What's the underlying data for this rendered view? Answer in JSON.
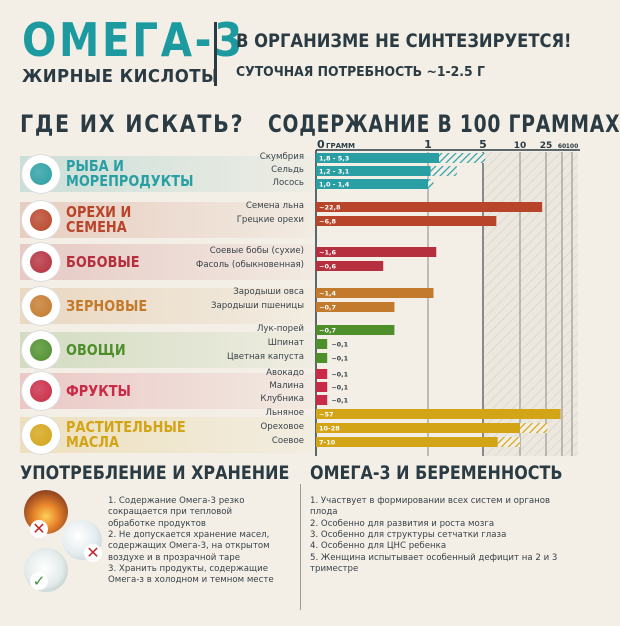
{
  "header": {
    "title": "ОМЕГА-3",
    "subtitle": "ЖИРНЫЕ КИСЛОТЫ",
    "line1": "В ОРГАНИЗМЕ НЕ СИНТЕЗИРУЕТСЯ!",
    "line2": "СУТОЧНАЯ ПОТРЕБНОСТЬ ~1-2.5 Г"
  },
  "sections": {
    "where": "ГДЕ ИХ ИСКАТЬ?",
    "content": "СОДЕРЖАНИЕ В 100 ГРАММАХ"
  },
  "colors": {
    "fish": "#2a9fa3",
    "nuts": "#b8452a",
    "legumes": "#b52f3e",
    "grains": "#c47a2c",
    "veg": "#4e8f2c",
    "fruits": "#c92a45",
    "oils": "#d4a417"
  },
  "categories": [
    {
      "name": "РЫБА И\nМОРЕПРОДУКТЫ",
      "color": "#2a9fa3",
      "icon": "fish-icon"
    },
    {
      "name": "ОРЕХИ И\nСЕМЕНА",
      "color": "#b8452a",
      "icon": "nuts-icon"
    },
    {
      "name": "БОБОВЫЕ",
      "color": "#b52f3e",
      "icon": "beans-icon"
    },
    {
      "name": "ЗЕРНОВЫЕ",
      "color": "#c47a2c",
      "icon": "wheat-icon"
    },
    {
      "name": "ОВОЩИ",
      "color": "#4e8f2c",
      "icon": "leek-icon"
    },
    {
      "name": "ФРУКТЫ",
      "color": "#c92a45",
      "icon": "raspberry-icon"
    },
    {
      "name": "РАСТИТЕЛЬНЫЕ\nМАСЛА",
      "color": "#d4a417",
      "icon": "oil-bottle-icon"
    }
  ],
  "chart_data": {
    "type": "bar",
    "title": "СОДЕРЖАНИЕ В 100 ГРАММАХ",
    "axis_unit": "ГРАММ",
    "ticks": [
      {
        "value": 0,
        "label": "0"
      },
      {
        "value": 1,
        "label": "1"
      },
      {
        "value": 5,
        "label": "5"
      },
      {
        "value": 10,
        "label": "10"
      },
      {
        "value": 25,
        "label": "25"
      },
      {
        "value": 60,
        "label": "60"
      },
      {
        "value": 100,
        "label": "100"
      }
    ],
    "items": [
      {
        "cat": 0,
        "name": "Скумбрия",
        "min": 1.8,
        "max": 5.3,
        "label": "1,8 - 5,3"
      },
      {
        "cat": 0,
        "name": "Сельдь",
        "min": 1.2,
        "max": 3.1,
        "label": "1,2 - 3,1"
      },
      {
        "cat": 0,
        "name": "Лосось",
        "min": 1.0,
        "max": 1.4,
        "label": "1,0 - 1,4"
      },
      {
        "cat": 1,
        "name": "Семена льна",
        "min": 22.8,
        "max": 22.8,
        "label": "~22,8"
      },
      {
        "cat": 1,
        "name": "Грецкие орехи",
        "min": 6.8,
        "max": 6.8,
        "label": "~6,8"
      },
      {
        "cat": 2,
        "name": "Соевые бобы (сухие)",
        "min": 1.6,
        "max": 1.6,
        "label": "~1,6"
      },
      {
        "cat": 2,
        "name": "Фасоль (обыкновенная)",
        "min": 0.6,
        "max": 0.6,
        "label": "~0,6"
      },
      {
        "cat": 3,
        "name": "Зародыши овса",
        "min": 1.4,
        "max": 1.4,
        "label": "~1,4"
      },
      {
        "cat": 3,
        "name": "Зародыши пшеницы",
        "min": 0.7,
        "max": 0.7,
        "label": "~0,7"
      },
      {
        "cat": 4,
        "name": "Лук-порей",
        "min": 0.7,
        "max": 0.7,
        "label": "~0,7"
      },
      {
        "cat": 4,
        "name": "Шпинат",
        "min": 0.1,
        "max": 0.1,
        "label": "~0,1"
      },
      {
        "cat": 4,
        "name": "Цветная капуста",
        "min": 0.1,
        "max": 0.1,
        "label": "~0,1"
      },
      {
        "cat": 5,
        "name": "Авокадо",
        "min": 0.1,
        "max": 0.1,
        "label": "~0,1"
      },
      {
        "cat": 5,
        "name": "Малина",
        "min": 0.1,
        "max": 0.1,
        "label": "~0,1"
      },
      {
        "cat": 5,
        "name": "Клубника",
        "min": 0.1,
        "max": 0.1,
        "label": "~0,1"
      },
      {
        "cat": 6,
        "name": "Льняное",
        "min": 57,
        "max": 57,
        "label": "~57"
      },
      {
        "cat": 6,
        "name": "Ореховое",
        "min": 10,
        "max": 28,
        "label": "10-28"
      },
      {
        "cat": 6,
        "name": "Соевое",
        "min": 7,
        "max": 10,
        "label": "7-10"
      }
    ]
  },
  "storage": {
    "title": "УПОТРЕБЛЕНИЕ И ХРАНЕНИЕ",
    "notes": [
      "1. Содержание Омега-3 резко",
      "сокращается при тепловой",
      "обработке продуктов",
      "2. Не допускается хранение масел,",
      "содержащих Омега-3, на открытом",
      "воздухе и в прозрачной таре",
      "3. Хранить продукты, содержащие",
      "Омега-з в холодном и темном месте"
    ]
  },
  "pregnancy": {
    "title": "ОМЕГА-3 И БЕРЕМЕННОСТЬ",
    "notes": [
      "1. Участвует в формировании всех систем и органов",
      "плода",
      "2. Особенно для развития и роста мозга",
      "3. Особенно для структуры сетчатки глаза",
      "4. Особенно для ЦНС ребенка",
      "5. Женщина испытывает особенный дефицит на 2 и 3",
      "триместре"
    ]
  }
}
